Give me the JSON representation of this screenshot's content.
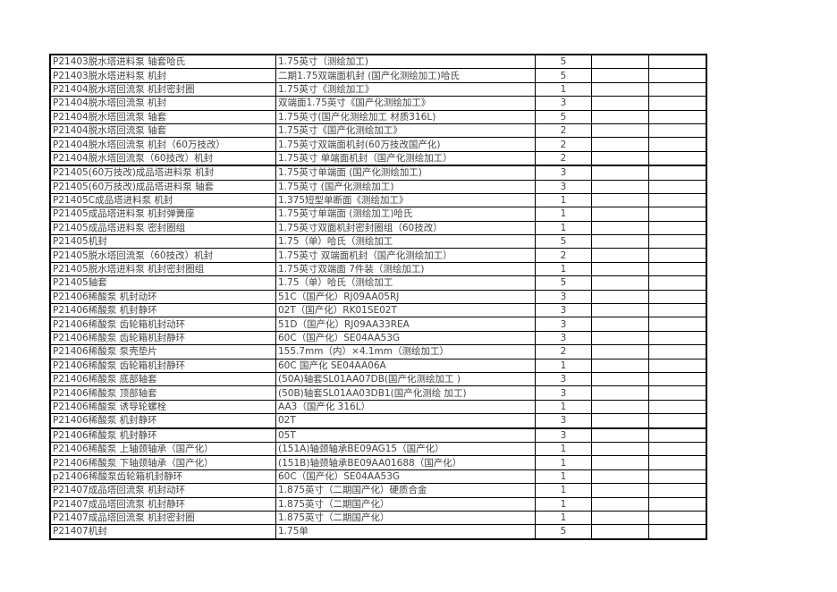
{
  "rows": [
    {
      "name": "P21403脱水塔进料泵  轴套哈氏",
      "spec": "1.75英寸（测绘加工)",
      "qty": "5"
    },
    {
      "name": "P21403脱水塔进料泵  机封",
      "spec": "二期1.75双端面机封 (国产化测绘加工)哈氏",
      "qty": "5"
    },
    {
      "name": "P21404脱水塔回流泵    机封密封圈",
      "spec": "1.75英寸《测绘加工》",
      "qty": "1"
    },
    {
      "name": "P21404脱水塔回流泵   机封",
      "spec": "双端面1.75英寸《国产化测绘加工》",
      "qty": "3"
    },
    {
      "name": "P21404脱水塔回流泵   轴套",
      "spec": "1.75英寸(国产化测绘加工  材质316L)",
      "qty": "5"
    },
    {
      "name": "P21404脱水塔回流泵   轴套",
      "spec": "1.75英寸《国产化测绘加工》",
      "qty": "2"
    },
    {
      "name": "P21404脱水塔回流泵 机封（60万技改）",
      "spec": "1.75英寸双端面机封(60万技改国产化)",
      "qty": "2"
    },
    {
      "name": "P21404脱水塔回流泵（60技改）机封",
      "spec": "1.75英寸 单端面机封（国产化测绘加工）",
      "qty": "2"
    },
    {
      "name": "P21405(60万技改)成品塔进料泵  机封",
      "spec": "1.75英寸单端面 (国产化测绘加工)",
      "qty": "3",
      "thick": true
    },
    {
      "name": "P21405(60万技改)成品塔进料泵  轴套",
      "spec": "1.75英寸 (国产化测绘加工)",
      "qty": "3"
    },
    {
      "name": "P21405C成品塔进料泵   机封",
      "spec": "1.375短型单断面《测绘加工》",
      "qty": "1"
    },
    {
      "name": "P21405成品塔进料泵  机封弹簧座",
      "spec": "1.75英寸单端面 (测绘加工)哈氏",
      "qty": "1"
    },
    {
      "name": "P21405成品塔进料泵  密封圈组",
      "spec": "1.75英寸双面机封密封圈组（60技改）",
      "qty": "1"
    },
    {
      "name": "P21405机封",
      "spec": "1.75（单）哈氏（测绘加工",
      "qty": "5"
    },
    {
      "name": "P21405脱水塔回流泵（60技改）机封",
      "spec": "1.75英寸 双端面机封（国产化测绘加工）",
      "qty": "2"
    },
    {
      "name": "P21405脱水塔进料泵  机封密封圈组",
      "spec": "1.75英寸双端面  7件装（测绘加工)",
      "qty": "1"
    },
    {
      "name": "P21405轴套",
      "spec": "1.75（单）哈氏（测绘加工",
      "qty": "5"
    },
    {
      "name": "P21406稀酸泵        机封动环",
      "spec": "51C（国产化）RJ09AA05RJ",
      "qty": "3"
    },
    {
      "name": "P21406稀酸泵        机封静环",
      "spec": "02T（国产化）RK01SE02T",
      "qty": "3"
    },
    {
      "name": "P21406稀酸泵   齿轮箱机封动环",
      "spec": "51D（国产化）RJ09AA33REA",
      "qty": "3"
    },
    {
      "name": "P21406稀酸泵   齿轮箱机封静环",
      "spec": "60C（国产化）SE04AA53G",
      "qty": "3"
    },
    {
      "name": "P21406稀酸泵  泵壳垫片",
      "spec": "155.7mm（内）×4.1mm（测绘加工）",
      "qty": "2"
    },
    {
      "name": "P21406稀酸泵  齿轮箱机封静环",
      "spec": "60C      国产化   SE04AA06A",
      "qty": "1"
    },
    {
      "name": "P21406稀酸泵  底部轴套",
      "spec": "(50A)轴套SL01AA07DB(国产化测绘加工 )",
      "qty": "3"
    },
    {
      "name": "P21406稀酸泵  顶部轴套",
      "spec": "(50B)轴套SL01AA03DB1(国产化测绘 加工)",
      "qty": "3"
    },
    {
      "name": "P21406稀酸泵  诱导轮螺栓",
      "spec": "AA3（国产化  316L）",
      "qty": "1"
    },
    {
      "name": "P21406稀酸泵  机封静环",
      "spec": "02T",
      "qty": "3"
    },
    {
      "name": "P21406稀酸泵  机封静环",
      "spec": "05T",
      "qty": "3",
      "thick": true
    },
    {
      "name": "P21406稀酸泵 上轴颈轴承（国产化）",
      "spec": "(151A)轴颈轴承BE09AG15（国产化）",
      "qty": "1"
    },
    {
      "name": "P21406稀酸泵 下轴颈轴承（国产化）",
      "spec": "(151B)轴颈轴承BE09AA01688（国产化）",
      "qty": "1"
    },
    {
      "name": "p21406稀酸泵齿轮箱机封静环",
      "spec": "60C（国产化）SE04AA53G",
      "qty": "1"
    },
    {
      "name": "P21407成品塔回流泵  机封动环",
      "spec": "1.875英寸（二期国产化）硬质合金",
      "qty": "1"
    },
    {
      "name": "P21407成品塔回流泵  机封静环",
      "spec": "1.875英寸（二期国产化）",
      "qty": "1"
    },
    {
      "name": "P21407成品塔回流泵  机封密封圈",
      "spec": "1.875英寸（二期国产化）",
      "qty": "1"
    },
    {
      "name": "P21407机封",
      "spec": "1.75单",
      "qty": "5"
    }
  ]
}
